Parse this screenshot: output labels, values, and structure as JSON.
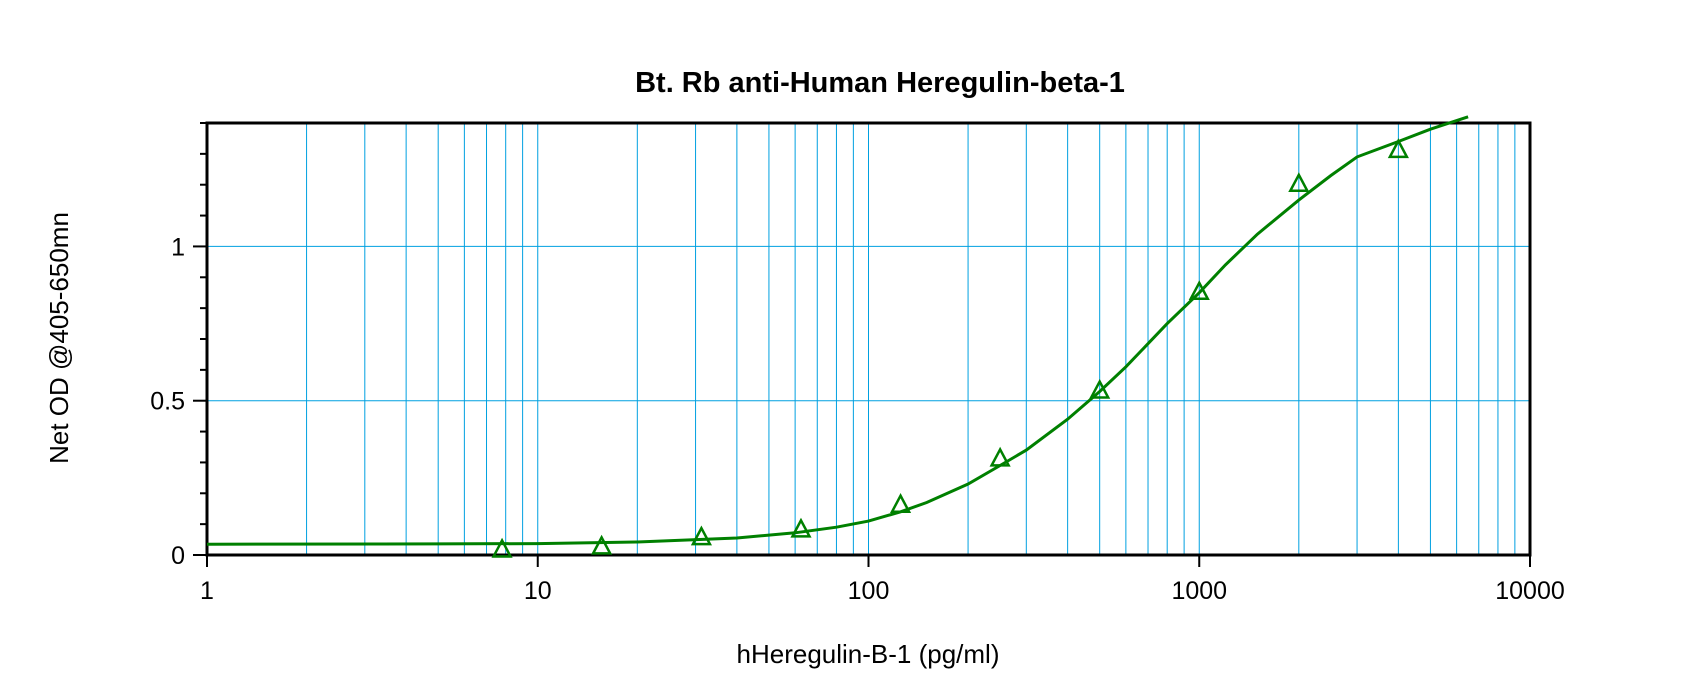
{
  "chart_data": {
    "type": "scatter",
    "title": "Bt. Rb anti-Human Heregulin-beta-1",
    "xlabel": "hHeregulin-B-1 (pg/ml)",
    "ylabel": "Net OD @405-650mn",
    "x_scale": "log",
    "xlim": [
      1,
      10000
    ],
    "ylim": [
      0,
      1.4
    ],
    "x_ticks": [
      1,
      10,
      100,
      1000,
      10000
    ],
    "x_tick_labels": [
      "1",
      "10",
      "100",
      "1000",
      "10000"
    ],
    "y_ticks": [
      0,
      0.5,
      1
    ],
    "y_tick_labels": [
      "0",
      "0.5",
      "1"
    ],
    "grid": true,
    "legend": "none",
    "colors": {
      "series": "#008000",
      "grid": "#00a0e0",
      "axes": "#000000"
    },
    "series": [
      {
        "marker": "triangle",
        "x": [
          7.8,
          15.6,
          31.25,
          62.5,
          125,
          250,
          500,
          1000,
          2000,
          4000
        ],
        "y": [
          0.015,
          0.025,
          0.055,
          0.08,
          0.16,
          0.31,
          0.53,
          0.85,
          1.2,
          1.31
        ]
      }
    ],
    "fit_curve": {
      "x": [
        1,
        5,
        10,
        20,
        40,
        60,
        80,
        100,
        125,
        150,
        200,
        250,
        300,
        400,
        500,
        600,
        800,
        1000,
        1200,
        1500,
        2000,
        2500,
        3000,
        4000,
        5000,
        6500
      ],
      "y": [
        0.035,
        0.036,
        0.037,
        0.042,
        0.055,
        0.072,
        0.09,
        0.11,
        0.14,
        0.17,
        0.23,
        0.29,
        0.34,
        0.44,
        0.53,
        0.61,
        0.75,
        0.85,
        0.94,
        1.04,
        1.15,
        1.23,
        1.29,
        1.34,
        1.38,
        1.42
      ]
    }
  }
}
